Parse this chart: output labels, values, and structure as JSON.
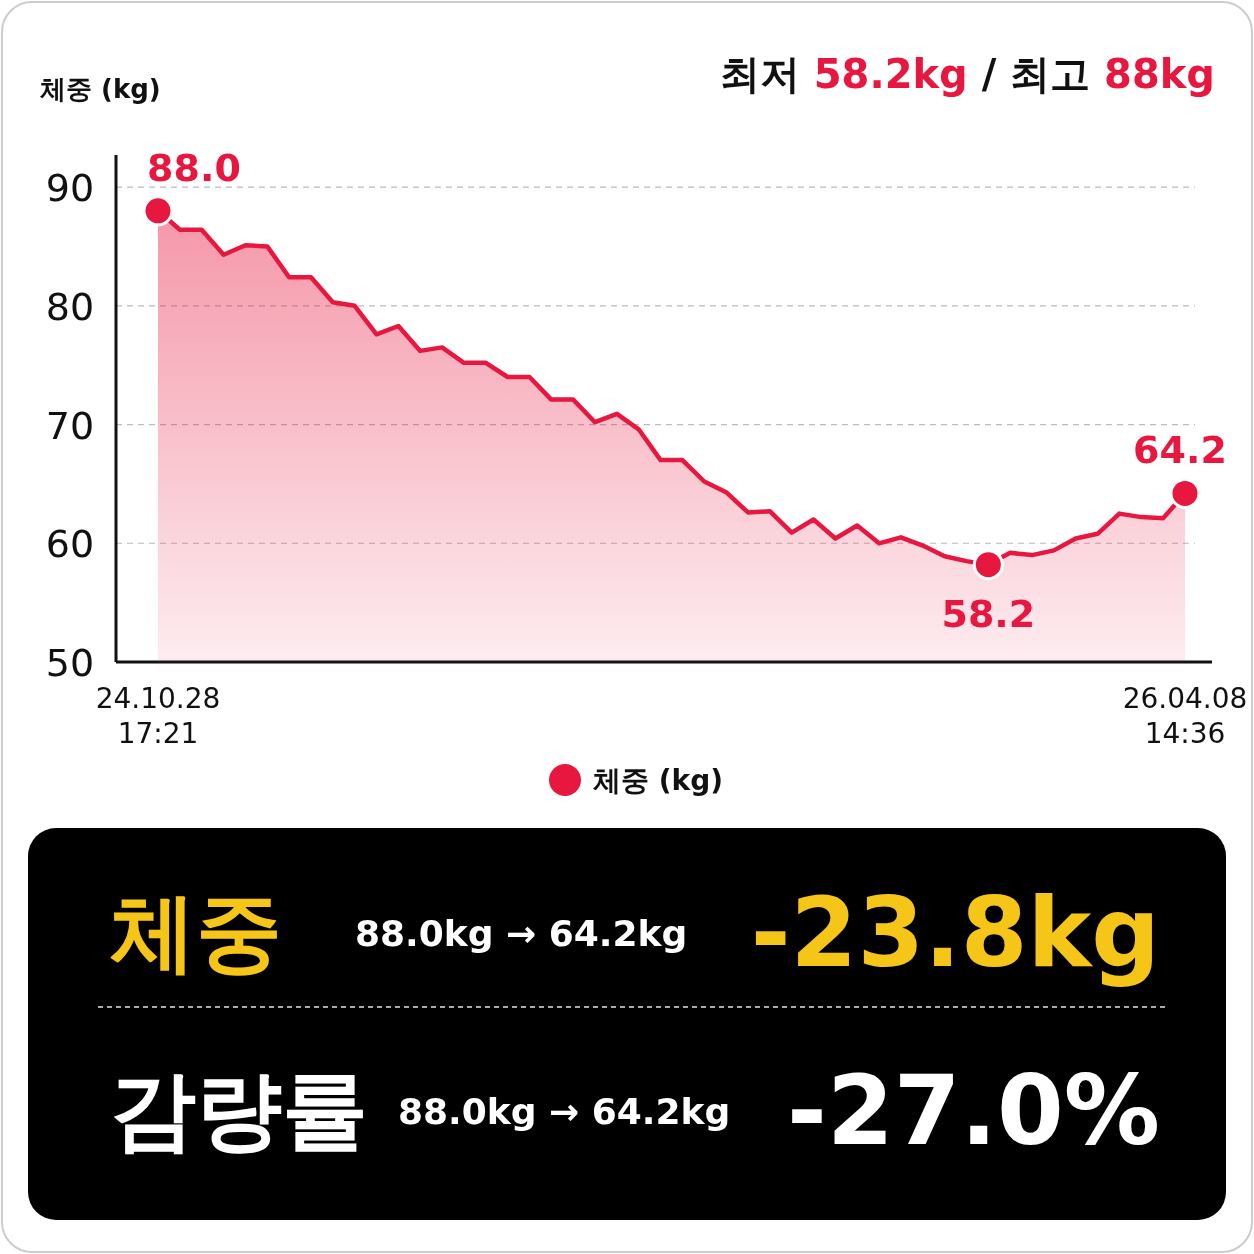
{
  "chart_data": [
    {
      "type": "area",
      "ylabel": "체중 (kg)",
      "annotations": [
        "최저 58.2kg / 최고 88kg"
      ],
      "categories": [
        "24.10.28\n17:21",
        null,
        null,
        null,
        null,
        null,
        null,
        null,
        null,
        null,
        null,
        null,
        null,
        null,
        null,
        null,
        null,
        null,
        null,
        null,
        null,
        null,
        null,
        null,
        null,
        null,
        null,
        null,
        null,
        null,
        null,
        null,
        null,
        null,
        null,
        null,
        null,
        null,
        null,
        null,
        null,
        null,
        null,
        null,
        null,
        null,
        null,
        "26.04.08\n14:36"
      ],
      "series": [
        {
          "name": "체중 (kg)",
          "color": "#e8173f",
          "values": [
            88.0,
            86.4,
            86.4,
            84.3,
            85.1,
            85.0,
            82.4,
            82.4,
            80.3,
            80.0,
            77.6,
            78.3,
            76.2,
            76.5,
            75.2,
            75.2,
            74.0,
            74.0,
            72.1,
            72.1,
            70.2,
            70.9,
            69.6,
            67.0,
            67.0,
            65.2,
            64.3,
            62.6,
            62.7,
            60.9,
            62.0,
            60.4,
            61.5,
            60.0,
            60.5,
            59.8,
            58.9,
            58.5,
            58.2,
            59.2,
            59.0,
            59.4,
            60.4,
            60.8,
            62.5,
            62.2,
            62.1,
            64.2
          ],
          "value_labels": [
            "88.0",
            null,
            null,
            null,
            null,
            null,
            null,
            null,
            null,
            null,
            null,
            null,
            null,
            null,
            null,
            null,
            null,
            null,
            null,
            null,
            null,
            null,
            null,
            null,
            null,
            null,
            null,
            null,
            null,
            null,
            null,
            null,
            null,
            null,
            null,
            null,
            null,
            null,
            "58.2",
            null,
            null,
            null,
            null,
            null,
            null,
            null,
            null,
            "64.2"
          ]
        }
      ],
      "ylim": [
        50,
        92.7
      ],
      "yticks": [
        50,
        60,
        70,
        80,
        90
      ],
      "grid": "y",
      "legend": "bottom",
      "marker": "none",
      "line_style": "solid"
    },
    {
      "type": "other",
      "annotations": [
        "체중",
        "88.0kg → 64.2kg",
        "-23.8kg",
        "감량률",
        "88.0kg → 64.2kg",
        "-27.0%"
      ]
    }
  ]
}
